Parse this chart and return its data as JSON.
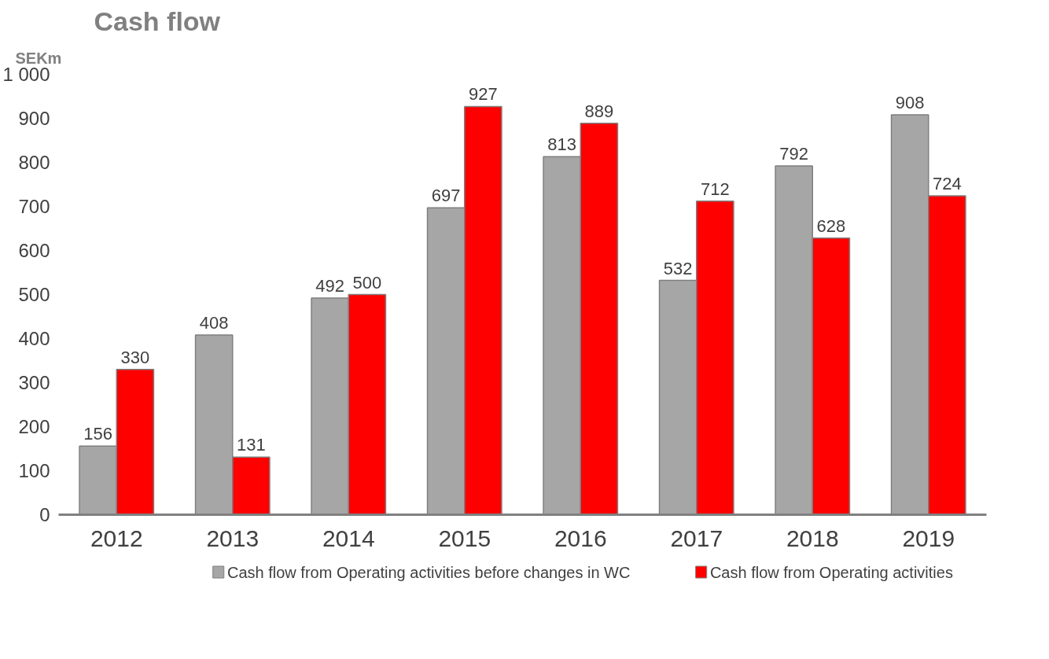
{
  "chart_data": {
    "type": "bar",
    "title": "Cash flow",
    "ylabel": "SEKm",
    "categories": [
      "2012",
      "2013",
      "2014",
      "2015",
      "2016",
      "2017",
      "2018",
      "2019"
    ],
    "series": [
      {
        "name": "Cash flow from Operating activities before changes in WC",
        "color": "#a6a6a6",
        "values": [
          156,
          408,
          492,
          697,
          813,
          532,
          792,
          908
        ]
      },
      {
        "name": "Cash flow from Operating activities",
        "color": "#ff0000",
        "values": [
          330,
          131,
          500,
          927,
          889,
          712,
          628,
          724
        ]
      }
    ],
    "ylim": [
      0,
      1000
    ],
    "yticks": [
      0,
      100,
      200,
      300,
      400,
      500,
      600,
      700,
      800,
      900,
      {
        "value": 1000,
        "label": "1 000"
      }
    ],
    "grid": false,
    "legend": "bottom",
    "data_labels": true
  }
}
